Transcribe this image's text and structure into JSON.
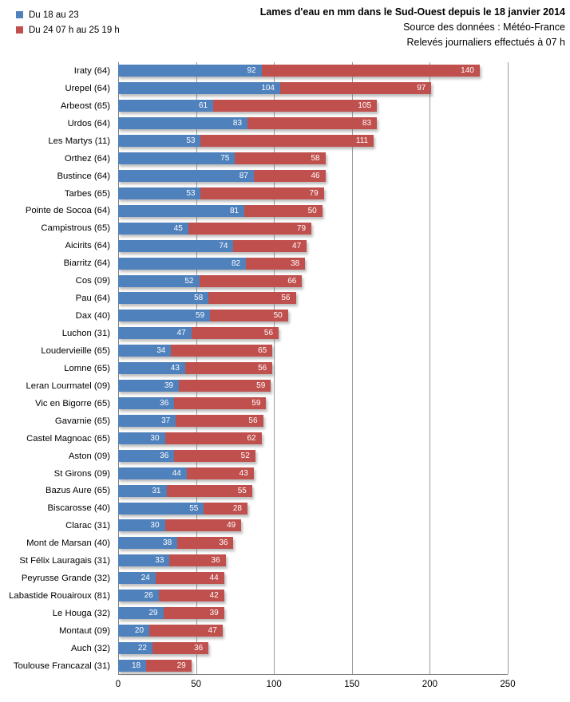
{
  "header": {
    "title": "Lames d'eau en mm dans le Sud-Ouest depuis le 18 janvier  2014",
    "source": "Source des données : Météo-France",
    "note": "Relevés journaliers effectués à 07 h"
  },
  "legend": {
    "items": [
      {
        "label": "Du 18 au 23",
        "color": "#4F81BD"
      },
      {
        "label": "Du 24 07 h au 25 19 h",
        "color": "#C0504D"
      }
    ]
  },
  "chart_data": {
    "type": "bar",
    "orientation": "horizontal-stacked",
    "title": "Lames d'eau en mm dans le Sud-Ouest depuis le 18 janvier  2014",
    "subtitle": "Source des données : Météo-France — Relevés journaliers effectués à 07 h",
    "xlabel": "",
    "ylabel": "",
    "xlim": [
      0,
      250
    ],
    "xticks": [
      0,
      50,
      100,
      150,
      200,
      250
    ],
    "grid": "vertical",
    "legend_position": "top-left",
    "value_labels": "inside-end, white",
    "categories": [
      "Iraty (64)",
      "Urepel (64)",
      "Arbeost (65)",
      "Urdos (64)",
      "Les Martys (11)",
      "Orthez (64)",
      "Bustince (64)",
      "Tarbes (65)",
      "Pointe de Socoa (64)",
      "Campistrous (65)",
      "Aicirits (64)",
      "Biarritz (64)",
      "Cos (09)",
      "Pau (64)",
      "Dax (40)",
      "Luchon (31)",
      "Loudervieille (65)",
      "Lomne (65)",
      "Leran Lourmatel (09)",
      "Vic en Bigorre (65)",
      "Gavarnie (65)",
      "Castel Magnoac (65)",
      "Aston (09)",
      "St Girons (09)",
      "Bazus Aure (65)",
      "Biscarosse (40)",
      "Clarac (31)",
      "Mont de Marsan (40)",
      "St Félix Lauragais (31)",
      "Peyrusse Grande (32)",
      "Labastide Rouairoux (81)",
      "Le Houga (32)",
      "Montaut (09)",
      "Auch (32)",
      "Toulouse Francazal (31)"
    ],
    "series": [
      {
        "name": "Du 18 au 23",
        "color": "#4F81BD",
        "values": [
          92,
          104,
          61,
          83,
          53,
          75,
          87,
          53,
          81,
          45,
          74,
          82,
          52,
          58,
          59,
          47,
          34,
          43,
          39,
          36,
          37,
          30,
          36,
          44,
          31,
          55,
          30,
          38,
          33,
          24,
          26,
          29,
          20,
          22,
          18
        ]
      },
      {
        "name": "Du 24 07 h au 25 19 h",
        "color": "#C0504D",
        "values": [
          140,
          97,
          105,
          83,
          111,
          58,
          46,
          79,
          50,
          79,
          47,
          38,
          66,
          56,
          50,
          56,
          65,
          56,
          59,
          59,
          56,
          62,
          52,
          43,
          55,
          28,
          49,
          36,
          36,
          44,
          42,
          39,
          47,
          36,
          29
        ]
      }
    ]
  },
  "colors": {
    "gridline": "#9a9a9a",
    "axis_line": "#808080",
    "value_label_text": "#ffffff",
    "background": "#ffffff"
  }
}
